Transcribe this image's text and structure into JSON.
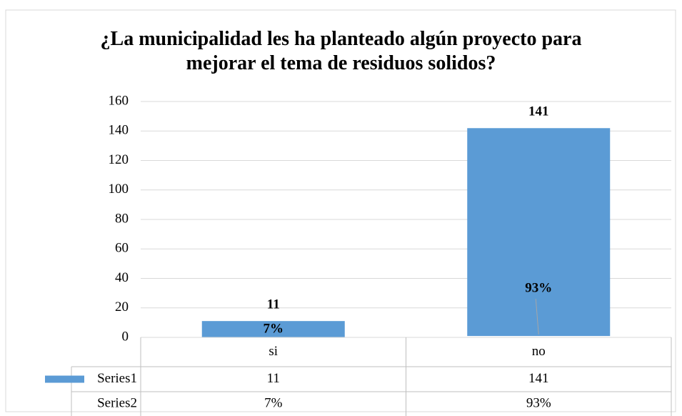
{
  "chart_data": {
    "type": "bar",
    "stacked": true,
    "title": "¿La municipalidad les ha planteado algún proyecto para mejorar el tema de residuos solidos?",
    "categories": [
      "si",
      "no"
    ],
    "series": [
      {
        "name": "Series1",
        "color": "#5b9bd5",
        "values": [
          11,
          141
        ]
      },
      {
        "name": "Series2",
        "color": "#ffffff",
        "values": [
          0.07,
          0.93
        ],
        "value_labels": [
          "7%",
          "93%"
        ]
      }
    ],
    "ylim": [
      0,
      160
    ],
    "yticks": [
      0,
      20,
      40,
      60,
      80,
      100,
      120,
      140,
      160
    ],
    "grid": true,
    "data_table": true
  }
}
